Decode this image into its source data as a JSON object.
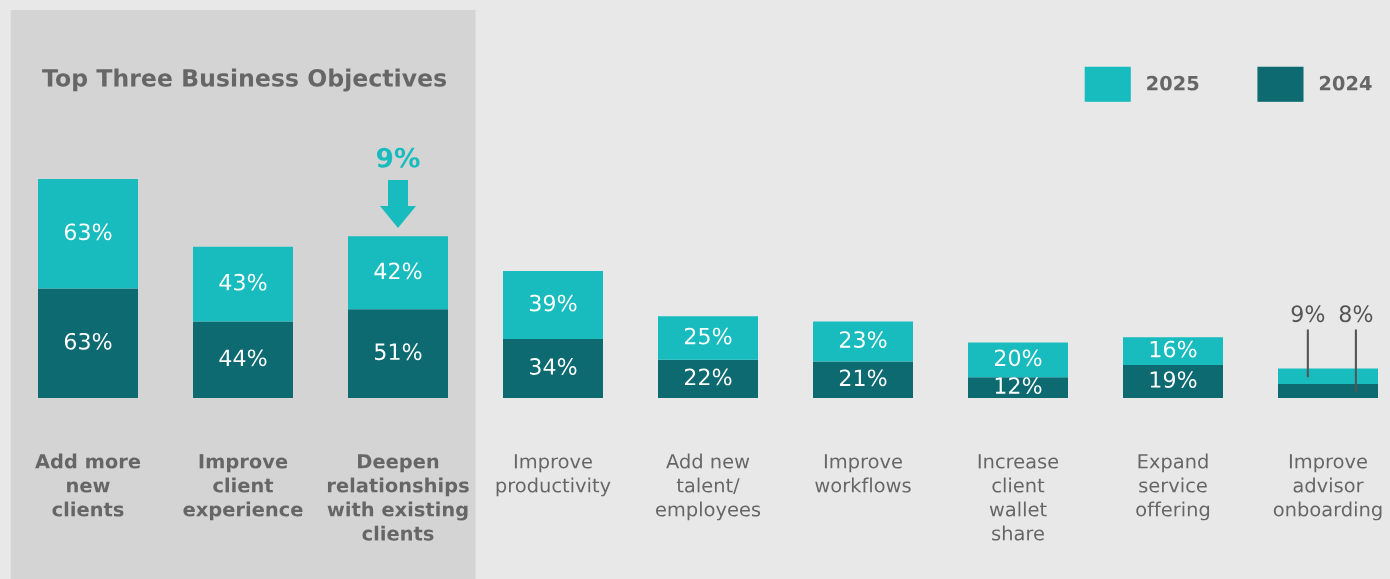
{
  "chart_data": {
    "type": "bar",
    "title": "Top Three Business Objectives",
    "stacked": true,
    "legend": "top right",
    "categories": [
      "Add more\nnew\nclients",
      "Improve\nclient\nexperience",
      "Deepen\nrelationships\nwith existing\nclients",
      "Improve\nproductivity",
      "Add new\ntalent/\nemployees",
      "Improve\nworkflows",
      "Increase\nclient\nwallet\nshare",
      "Expand\nservice\noffering",
      "Improve\nadvisor\nonboarding"
    ],
    "series": [
      {
        "name": "2024",
        "color": "#0c6a70",
        "values": [
          63,
          44,
          51,
          34,
          22,
          21,
          12,
          19,
          8
        ],
        "value_labels": [
          "63%",
          "44%",
          "51%",
          "34%",
          "22%",
          "21%",
          "12%",
          "19%",
          "8%"
        ]
      },
      {
        "name": "2025",
        "color": "#19bcbe",
        "values": [
          63,
          43,
          42,
          39,
          25,
          23,
          20,
          16,
          9
        ],
        "value_labels": [
          "63%",
          "43%",
          "42%",
          "39%",
          "25%",
          "23%",
          "20%",
          "16%",
          "9%"
        ]
      }
    ],
    "bands": [
      {
        "axis": "x",
        "from": "Add more\nnew\nclients",
        "to": "Deepen\nrelationships\nwith existing\nclients",
        "color": "#d4d4d4"
      }
    ],
    "annotations": [
      "9%"
    ]
  }
}
